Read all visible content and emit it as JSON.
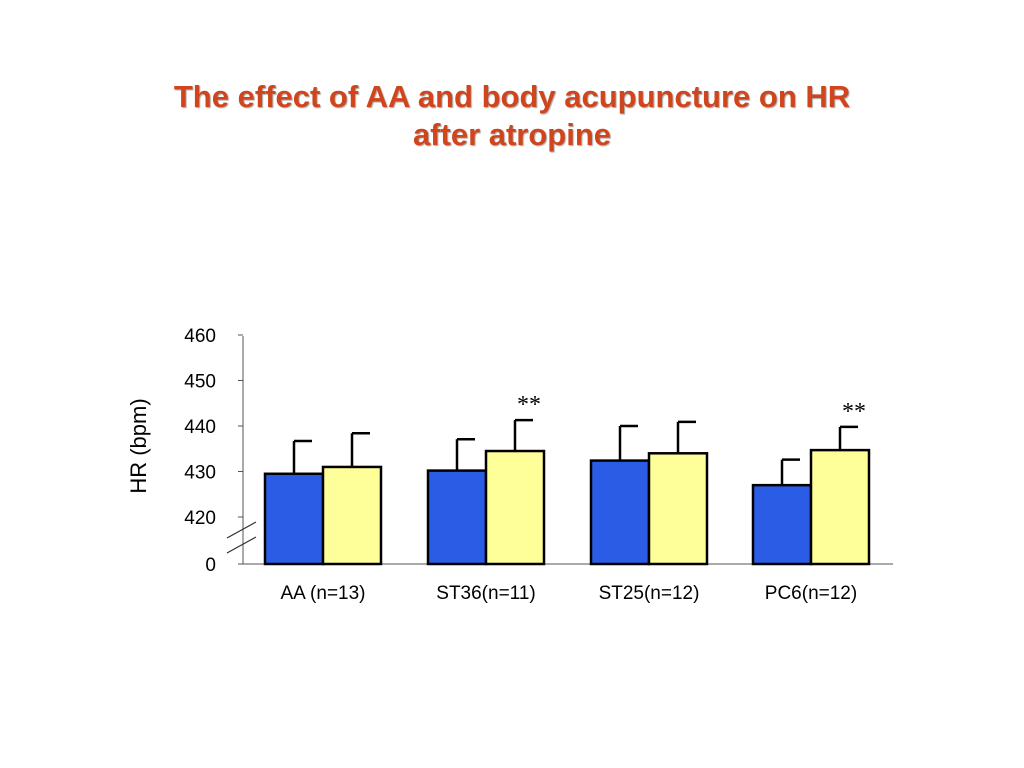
{
  "chart_data": {
    "type": "bar",
    "title": [
      "The effect of AA and body acupuncture on HR",
      "after atropine"
    ],
    "ylabel": "HR (bpm)",
    "xlabel": "",
    "categories": [
      "AA (n=13)",
      "ST36(n=11)",
      "ST25(n=12)",
      "PC6(n=12)"
    ],
    "y_ticks": [
      "0",
      "420",
      "430",
      "440",
      "450",
      "460"
    ],
    "ylim": [
      415,
      460
    ],
    "axis_break": true,
    "series": [
      {
        "values": [
          429.5,
          430.2,
          432.4,
          427.0
        ],
        "errors": [
          7.2,
          6.9,
          7.6,
          5.6
        ],
        "color": "#2b5ce6"
      },
      {
        "values": [
          431.0,
          434.5,
          434.0,
          434.7
        ],
        "errors": [
          7.4,
          6.8,
          6.9,
          5.1
        ],
        "color": "#ffff99"
      }
    ],
    "annotations": [
      {
        "category": 1,
        "series": 1,
        "text": "**"
      },
      {
        "category": 3,
        "series": 1,
        "text": "**"
      }
    ]
  }
}
